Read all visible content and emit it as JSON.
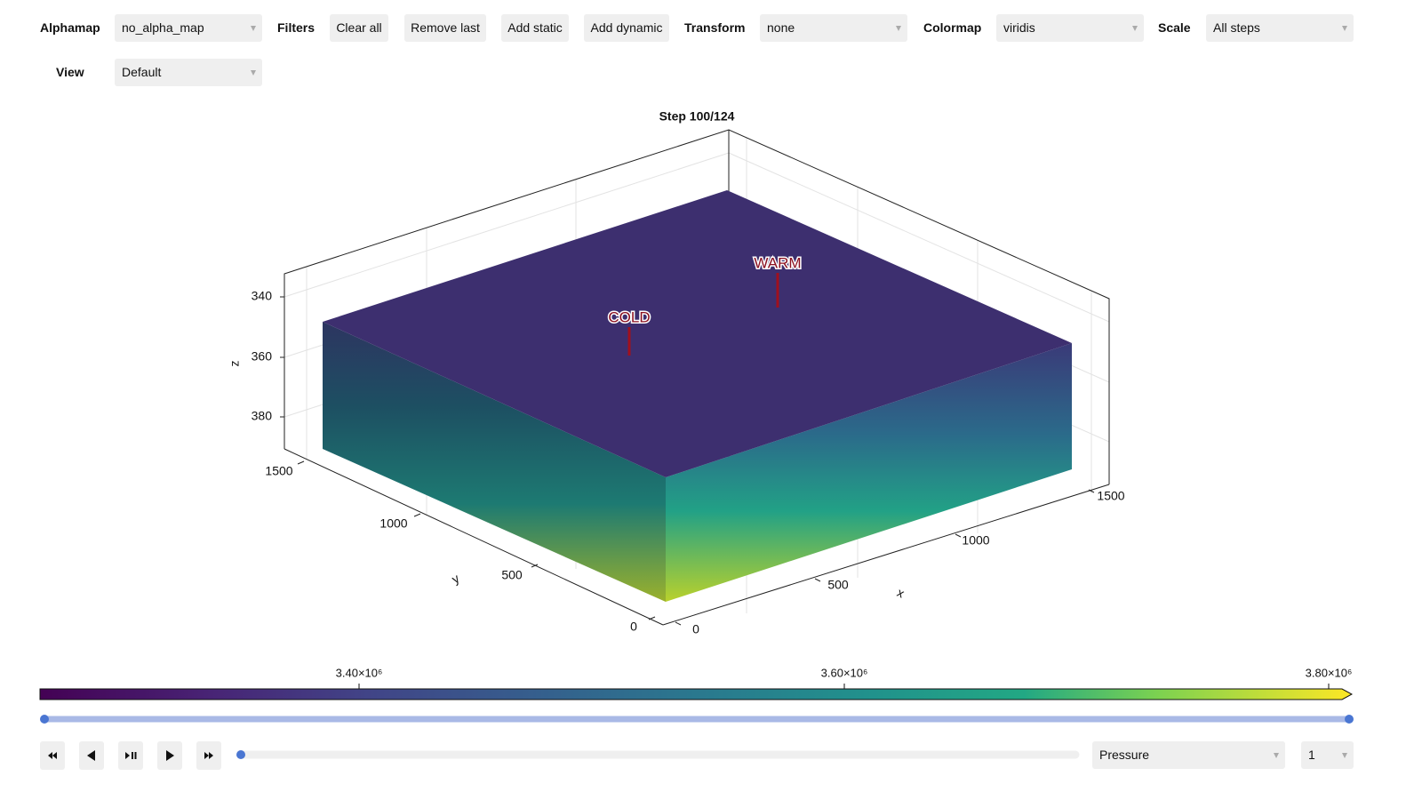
{
  "toolbar": {
    "alphamap": {
      "label": "Alphamap",
      "value": "no_alpha_map"
    },
    "filters": {
      "label": "Filters",
      "buttons": [
        "Clear all",
        "Remove last",
        "Add static",
        "Add dynamic"
      ]
    },
    "transform": {
      "label": "Transform",
      "value": "none"
    },
    "colormap": {
      "label": "Colormap",
      "value": "viridis"
    },
    "scale": {
      "label": "Scale",
      "value": "All steps"
    },
    "view": {
      "label": "View",
      "value": "Default"
    }
  },
  "plot": {
    "title": "Step 100/124",
    "x_axis": {
      "label": "x",
      "ticks": [
        "0",
        "500",
        "1000",
        "1500"
      ]
    },
    "y_axis": {
      "label": "y",
      "ticks": [
        "0",
        "500",
        "1000",
        "1500"
      ]
    },
    "z_axis": {
      "label": "z",
      "ticks": [
        "340",
        "360",
        "380"
      ]
    },
    "wells": [
      "COLD",
      "WARM"
    ]
  },
  "colorbar": {
    "ticks": [
      "3.40×10⁶",
      "3.60×10⁶",
      "3.80×10⁶"
    ]
  },
  "controls": {
    "field": "Pressure",
    "index": "1"
  }
}
